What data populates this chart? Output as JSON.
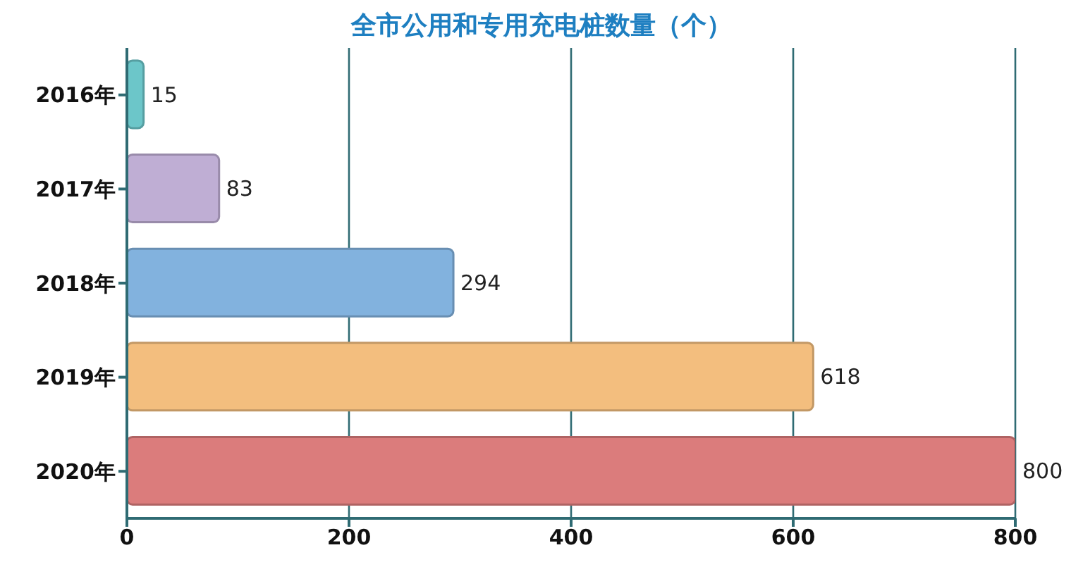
{
  "chart_data": {
    "type": "bar",
    "orientation": "horizontal",
    "title": "全市公用和专用充电桩数量（个）",
    "categories": [
      "2016年",
      "2017年",
      "2018年",
      "2019年",
      "2020年"
    ],
    "values": [
      15,
      83,
      294,
      618,
      800
    ],
    "colors": [
      "#6cc6c9",
      "#bfaed4",
      "#82b2de",
      "#f3be7e",
      "#db7c7c"
    ],
    "xlim": [
      0,
      800
    ],
    "xticks": [
      0,
      200,
      400,
      600,
      800
    ],
    "grid": "x",
    "data_labels": true
  }
}
